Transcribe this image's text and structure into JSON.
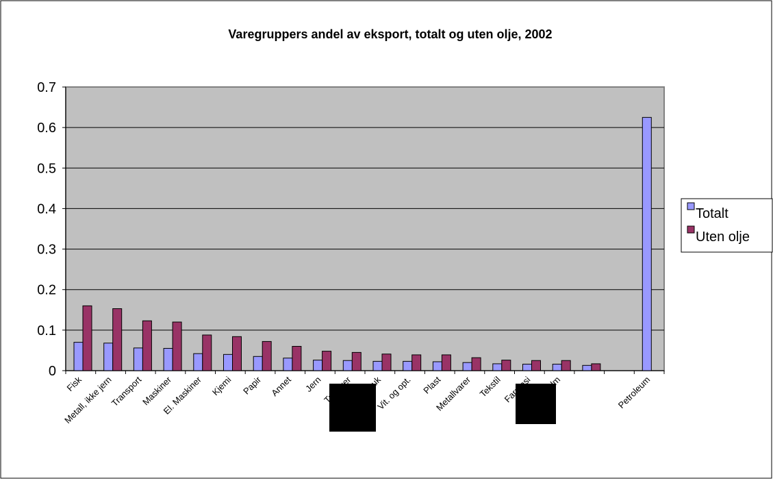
{
  "chart_data": {
    "type": "bar",
    "title": "Varegruppers andel av eksport, totalt og uten olje, 2002",
    "categories": [
      "Fisk",
      "Metall, ikke jern",
      "Transport",
      "Maskiner",
      "El. Maskiner",
      "Kjemi",
      "Papir",
      "Annet",
      "Jern",
      "Trevarer",
      "Jordbruk",
      "Vit. og opt.",
      "Plast",
      "Metallvarer",
      "Tekstil",
      "Farmasi",
      "Malm",
      null,
      null,
      "Petroleum"
    ],
    "series": [
      {
        "name": "Totalt",
        "color": "#9999ff",
        "values": [
          0.07,
          0.068,
          0.056,
          0.055,
          0.042,
          0.04,
          0.035,
          0.031,
          0.026,
          0.025,
          0.023,
          0.023,
          0.022,
          0.02,
          0.017,
          0.016,
          0.016,
          0.013,
          null,
          0.625
        ]
      },
      {
        "name": "Uten olje",
        "color": "#993366",
        "values": [
          0.16,
          0.153,
          0.123,
          0.12,
          0.088,
          0.084,
          0.072,
          0.06,
          0.048,
          0.045,
          0.041,
          0.039,
          0.039,
          0.032,
          0.026,
          0.025,
          0.025,
          0.017,
          null,
          null
        ]
      }
    ],
    "ylim": [
      0,
      0.7
    ],
    "yticks": [
      0,
      0.1,
      0.2,
      0.3,
      0.4,
      0.5,
      0.6,
      0.7
    ],
    "grid": true,
    "legend": "right"
  }
}
